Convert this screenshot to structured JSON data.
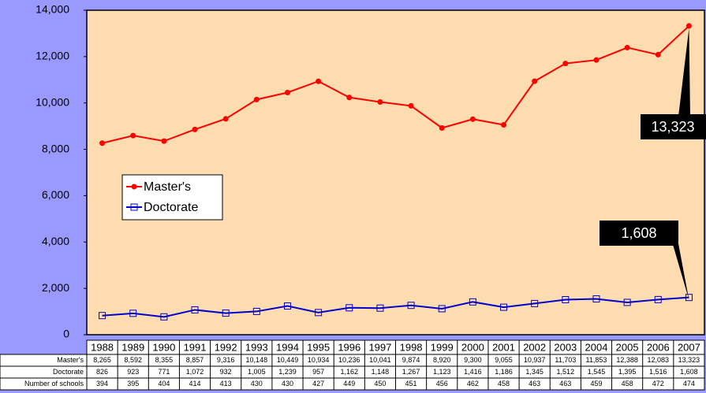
{
  "chart_data": {
    "type": "line",
    "categories": [
      "1988",
      "1989",
      "1990",
      "1991",
      "1992",
      "1993",
      "1994",
      "1995",
      "1996",
      "1997",
      "1998",
      "1999",
      "2000",
      "2001",
      "2002",
      "2003",
      "2004",
      "2005",
      "2006",
      "2007"
    ],
    "series": [
      {
        "name": "Master's",
        "color": "#ff0000",
        "marker": "circle",
        "values": [
          8265,
          8592,
          8355,
          8857,
          9316,
          10148,
          10449,
          10934,
          10236,
          10041,
          9874,
          8920,
          9300,
          9055,
          10937,
          11703,
          11853,
          12388,
          12083,
          13323
        ],
        "value_labels": [
          "8,265",
          "8,592",
          "8,355",
          "8,857",
          "9,316",
          "10,148",
          "10,449",
          "10,934",
          "10,236",
          "10,041",
          "9,874",
          "8,920",
          "9,300",
          "9,055",
          "10,937",
          "11,703",
          "11,853",
          "12,388",
          "12,083",
          "13,323"
        ]
      },
      {
        "name": "Doctorate",
        "color": "#0000cc",
        "marker": "square",
        "values": [
          826,
          923,
          771,
          1072,
          932,
          1005,
          1239,
          957,
          1162,
          1148,
          1267,
          1123,
          1416,
          1186,
          1345,
          1512,
          1545,
          1395,
          1516,
          1608
        ],
        "value_labels": [
          "826",
          "923",
          "771",
          "1,072",
          "932",
          "1,005",
          "1,239",
          "957",
          "1,162",
          "1,148",
          "1,267",
          "1,123",
          "1,416",
          "1,186",
          "1,345",
          "1,512",
          "1,545",
          "1,395",
          "1,516",
          "1,608"
        ]
      }
    ],
    "extra_rows": [
      {
        "name": "Number of schools",
        "values": [
          394,
          395,
          404,
          414,
          413,
          430,
          430,
          427,
          449,
          450,
          451,
          456,
          462,
          458,
          463,
          463,
          459,
          458,
          472,
          474
        ]
      }
    ],
    "callouts": [
      {
        "series": 0,
        "index": 19
      },
      {
        "series": 1,
        "index": 19
      }
    ],
    "ylim": [
      0,
      14000
    ],
    "yticks": [
      0,
      {
        "value": 2000,
        "label": "2,000"
      },
      {
        "value": 4000,
        "label": "4,000"
      },
      {
        "value": 6000,
        "label": "6,000"
      },
      {
        "value": 8000,
        "label": "8,000"
      },
      {
        "value": 10000,
        "label": "10,000"
      },
      {
        "value": 12000,
        "label": "12,000"
      },
      {
        "value": 14000,
        "label": "14,000"
      }
    ],
    "grid": false,
    "legend": "left"
  }
}
